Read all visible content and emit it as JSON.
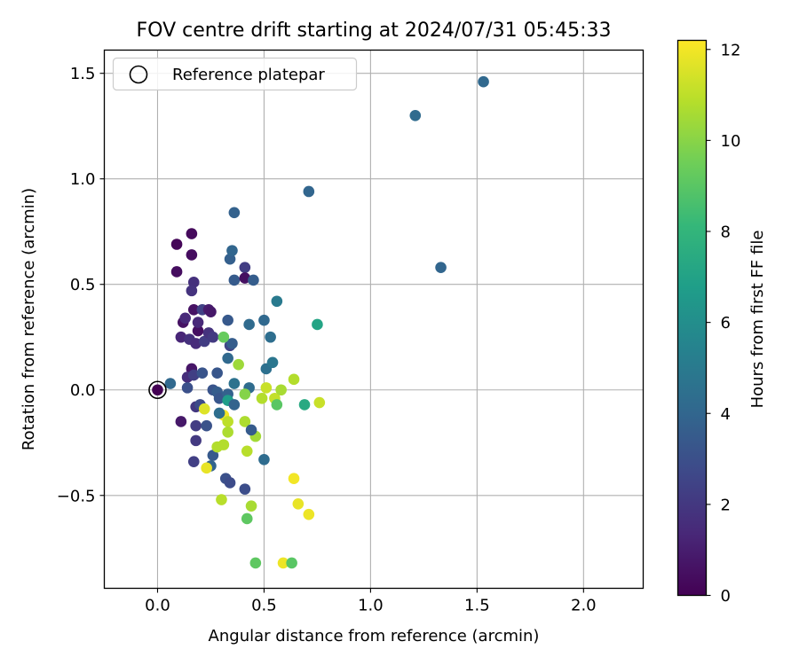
{
  "chart_data": {
    "type": "scatter",
    "title": "FOV centre drift starting at 2024/07/31 05:45:33",
    "xlabel": "Angular distance from reference (arcmin)",
    "ylabel": "Rotation from reference (arcmin)",
    "xlim": [
      -0.25,
      2.28
    ],
    "ylim": [
      -0.94,
      1.61
    ],
    "xticks": [
      0.0,
      0.5,
      1.0,
      1.5,
      2.0
    ],
    "xtick_labels": [
      "0.0",
      "0.5",
      "1.0",
      "1.5",
      "2.0"
    ],
    "yticks": [
      -0.5,
      0.0,
      0.5,
      1.0,
      1.5
    ],
    "ytick_labels": [
      "−0.5",
      "0.0",
      "0.5",
      "1.0",
      "1.5"
    ],
    "grid": true,
    "legend": {
      "position": "top-left",
      "entries": [
        "Reference platepar"
      ]
    },
    "reference_point": {
      "x": 0.0,
      "y": 0.0
    },
    "colorbar": {
      "label": "Hours from first FF file",
      "range": [
        0,
        12.2
      ],
      "ticks": [
        0,
        2,
        4,
        6,
        8,
        10,
        12
      ],
      "tick_labels": [
        "0",
        "2",
        "4",
        "6",
        "8",
        "10",
        "12"
      ],
      "colormap": "viridis"
    },
    "colormap_stops": [
      "#440154",
      "#482878",
      "#3e4989",
      "#31688e",
      "#26828e",
      "#1f9e89",
      "#35b779",
      "#6ece58",
      "#b5de2b",
      "#fde725"
    ],
    "points": [
      {
        "x": 0.09,
        "y": 0.69,
        "h": 0.2
      },
      {
        "x": 0.16,
        "y": 0.74,
        "h": 0.3
      },
      {
        "x": 0.09,
        "y": 0.56,
        "h": 0.4
      },
      {
        "x": 0.16,
        "y": 0.64,
        "h": 0.4
      },
      {
        "x": 0.17,
        "y": 0.51,
        "h": 1.7
      },
      {
        "x": 0.16,
        "y": 0.47,
        "h": 1.8
      },
      {
        "x": 0.12,
        "y": 0.32,
        "h": 0.6
      },
      {
        "x": 0.17,
        "y": 0.38,
        "h": 0.6
      },
      {
        "x": 0.13,
        "y": 0.34,
        "h": 1.4
      },
      {
        "x": 0.19,
        "y": 0.28,
        "h": 0.5
      },
      {
        "x": 0.11,
        "y": 0.25,
        "h": 1.3
      },
      {
        "x": 0.15,
        "y": 0.24,
        "h": 1.7
      },
      {
        "x": 0.18,
        "y": 0.22,
        "h": 1.5
      },
      {
        "x": 0.22,
        "y": 0.23,
        "h": 2.2
      },
      {
        "x": 0.21,
        "y": 0.38,
        "h": 2.4
      },
      {
        "x": 0.24,
        "y": 0.38,
        "h": 0.9
      },
      {
        "x": 0.25,
        "y": 0.37,
        "h": 0.8
      },
      {
        "x": 0.19,
        "y": 0.32,
        "h": 1.4
      },
      {
        "x": 0.24,
        "y": 0.27,
        "h": 1.8
      },
      {
        "x": 0.26,
        "y": 0.25,
        "h": 2.1
      },
      {
        "x": 0.16,
        "y": 0.1,
        "h": 0.7
      },
      {
        "x": 0.14,
        "y": 0.06,
        "h": 1.6
      },
      {
        "x": 0.17,
        "y": 0.07,
        "h": 2.3
      },
      {
        "x": 0.21,
        "y": 0.08,
        "h": 3.2
      },
      {
        "x": 0.14,
        "y": 0.01,
        "h": 3.0
      },
      {
        "x": 0.06,
        "y": 0.03,
        "h": 4.1
      },
      {
        "x": 0.11,
        "y": -0.15,
        "h": 0.8
      },
      {
        "x": 0.18,
        "y": -0.08,
        "h": 2.0
      },
      {
        "x": 0.2,
        "y": -0.07,
        "h": 2.8
      },
      {
        "x": 0.18,
        "y": -0.17,
        "h": 2.2
      },
      {
        "x": 0.18,
        "y": -0.24,
        "h": 2.1
      },
      {
        "x": 0.23,
        "y": -0.17,
        "h": 3.1
      },
      {
        "x": 0.17,
        "y": -0.34,
        "h": 2.3
      },
      {
        "x": 0.26,
        "y": 0.0,
        "h": 3.2
      },
      {
        "x": 0.28,
        "y": 0.08,
        "h": 3.3
      },
      {
        "x": 0.28,
        "y": -0.01,
        "h": 3.6
      },
      {
        "x": 0.29,
        "y": -0.04,
        "h": 3.3
      },
      {
        "x": 0.33,
        "y": -0.02,
        "h": 3.8
      },
      {
        "x": 0.33,
        "y": -0.05,
        "h": 6.8
      },
      {
        "x": 0.36,
        "y": 0.03,
        "h": 4.6
      },
      {
        "x": 0.36,
        "y": -0.07,
        "h": 3.9
      },
      {
        "x": 0.34,
        "y": 0.21,
        "h": 2.5
      },
      {
        "x": 0.35,
        "y": 0.22,
        "h": 3.6
      },
      {
        "x": 0.33,
        "y": 0.15,
        "h": 4.1
      },
      {
        "x": 0.33,
        "y": 0.33,
        "h": 3.4
      },
      {
        "x": 0.31,
        "y": 0.25,
        "h": 9.3
      },
      {
        "x": 0.38,
        "y": 0.12,
        "h": 10.4
      },
      {
        "x": 0.43,
        "y": 0.01,
        "h": 4.3
      },
      {
        "x": 0.43,
        "y": 0.31,
        "h": 4.2
      },
      {
        "x": 0.5,
        "y": 0.33,
        "h": 4.1
      },
      {
        "x": 0.53,
        "y": 0.25,
        "h": 4.4
      },
      {
        "x": 0.51,
        "y": 0.1,
        "h": 4.5
      },
      {
        "x": 0.54,
        "y": 0.13,
        "h": 4.8
      },
      {
        "x": 0.56,
        "y": 0.42,
        "h": 5.0
      },
      {
        "x": 0.75,
        "y": 0.31,
        "h": 7.1
      },
      {
        "x": 0.36,
        "y": 0.52,
        "h": 3.5
      },
      {
        "x": 0.34,
        "y": 0.62,
        "h": 3.7
      },
      {
        "x": 0.35,
        "y": 0.66,
        "h": 4.0
      },
      {
        "x": 0.41,
        "y": 0.58,
        "h": 2.2
      },
      {
        "x": 0.41,
        "y": 0.53,
        "h": 0.5
      },
      {
        "x": 0.45,
        "y": 0.52,
        "h": 3.6
      },
      {
        "x": 0.36,
        "y": 0.84,
        "h": 3.8
      },
      {
        "x": 0.71,
        "y": 0.94,
        "h": 4.0
      },
      {
        "x": 1.21,
        "y": 1.3,
        "h": 4.2
      },
      {
        "x": 1.53,
        "y": 1.46,
        "h": 4.1
      },
      {
        "x": 1.33,
        "y": 0.58,
        "h": 4.0
      },
      {
        "x": 0.22,
        "y": -0.09,
        "h": 11.6
      },
      {
        "x": 0.31,
        "y": -0.12,
        "h": 12.0
      },
      {
        "x": 0.33,
        "y": -0.15,
        "h": 11.0
      },
      {
        "x": 0.29,
        "y": -0.11,
        "h": 4.4
      },
      {
        "x": 0.33,
        "y": -0.2,
        "h": 10.7
      },
      {
        "x": 0.26,
        "y": -0.31,
        "h": 3.4
      },
      {
        "x": 0.25,
        "y": -0.36,
        "h": 3.9
      },
      {
        "x": 0.28,
        "y": -0.27,
        "h": 10.8
      },
      {
        "x": 0.31,
        "y": -0.26,
        "h": 10.8
      },
      {
        "x": 0.23,
        "y": -0.37,
        "h": 11.8
      },
      {
        "x": 0.32,
        "y": -0.42,
        "h": 3.0
      },
      {
        "x": 0.34,
        "y": -0.44,
        "h": 2.8
      },
      {
        "x": 0.41,
        "y": -0.47,
        "h": 2.9
      },
      {
        "x": 0.3,
        "y": -0.52,
        "h": 10.9
      },
      {
        "x": 0.44,
        "y": -0.55,
        "h": 10.6
      },
      {
        "x": 0.42,
        "y": -0.61,
        "h": 9.1
      },
      {
        "x": 0.41,
        "y": -0.15,
        "h": 10.7
      },
      {
        "x": 0.42,
        "y": -0.29,
        "h": 10.9
      },
      {
        "x": 0.46,
        "y": -0.22,
        "h": 10.5
      },
      {
        "x": 0.44,
        "y": -0.19,
        "h": 3.5
      },
      {
        "x": 0.5,
        "y": -0.33,
        "h": 4.3
      },
      {
        "x": 0.41,
        "y": -0.02,
        "h": 9.9
      },
      {
        "x": 0.49,
        "y": -0.04,
        "h": 10.8
      },
      {
        "x": 0.51,
        "y": 0.01,
        "h": 11.2
      },
      {
        "x": 0.55,
        "y": -0.04,
        "h": 11.1
      },
      {
        "x": 0.56,
        "y": -0.07,
        "h": 9.0
      },
      {
        "x": 0.58,
        "y": 0.0,
        "h": 10.6
      },
      {
        "x": 0.64,
        "y": 0.05,
        "h": 10.8
      },
      {
        "x": 0.69,
        "y": -0.07,
        "h": 7.4
      },
      {
        "x": 0.76,
        "y": -0.06,
        "h": 11.2
      },
      {
        "x": 0.64,
        "y": -0.42,
        "h": 12.0
      },
      {
        "x": 0.66,
        "y": -0.54,
        "h": 11.8
      },
      {
        "x": 0.71,
        "y": -0.59,
        "h": 11.9
      },
      {
        "x": 0.46,
        "y": -0.82,
        "h": 9.1
      },
      {
        "x": 0.59,
        "y": -0.82,
        "h": 11.9
      },
      {
        "x": 0.63,
        "y": -0.82,
        "h": 9.0
      },
      {
        "x": 0.0,
        "y": 0.0,
        "h": 0.0
      }
    ]
  }
}
